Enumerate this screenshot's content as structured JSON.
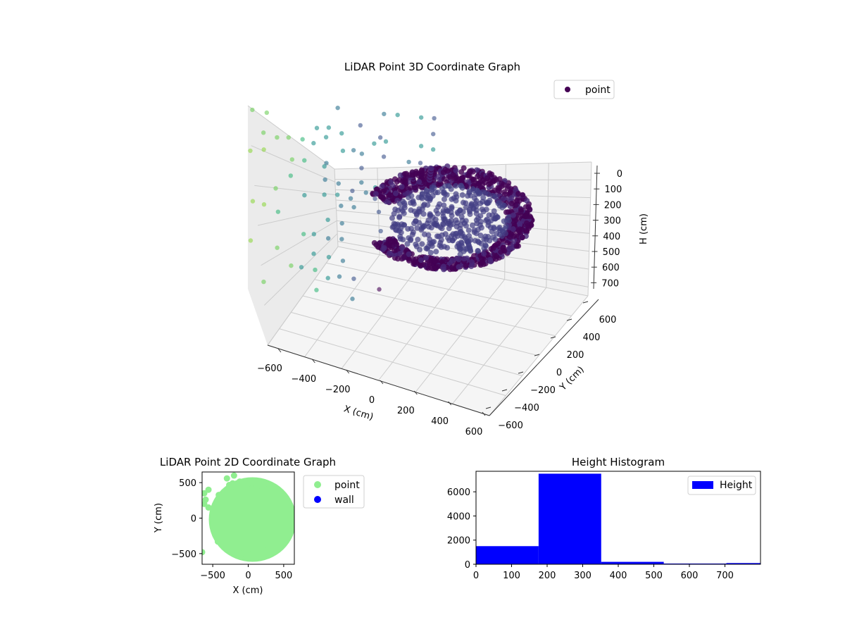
{
  "chart_data": [
    {
      "type": "scatter3d",
      "title": "LiDAR Point 3D Coordinate Graph",
      "xlabel": "X (cm)",
      "ylabel": "Y (cm)",
      "zlabel": "H (cm)",
      "x_ticks": [
        "−600",
        "−400",
        "−200",
        "0",
        "200",
        "400",
        "600"
      ],
      "y_ticks": [
        "600",
        "400",
        "200",
        "0",
        "−200",
        "−400",
        "−600"
      ],
      "z_ticks": [
        "0",
        "100",
        "200",
        "300",
        "400",
        "500",
        "600",
        "700"
      ],
      "xlim": [
        -600,
        600
      ],
      "ylim": [
        -600,
        600
      ],
      "zlim": [
        0,
        750
      ],
      "z_inverted": true,
      "legend": {
        "position": "top-right",
        "entries": [
          {
            "label": "point",
            "color": "#440154"
          }
        ]
      },
      "colormap": "viridis"
    },
    {
      "type": "scatter",
      "title": "LiDAR Point 2D Coordinate Graph",
      "xlabel": "X (cm)",
      "ylabel": "Y (cm)",
      "x_ticks": [
        "−500",
        "0",
        "500"
      ],
      "y_ticks": [
        "500",
        "0",
        "−500"
      ],
      "xlim": [
        -650,
        650
      ],
      "ylim": [
        -650,
        650
      ],
      "legend": {
        "position": "outside-right",
        "entries": [
          {
            "label": "point",
            "color": "#90ee90"
          },
          {
            "label": "wall",
            "color": "#0000ff"
          }
        ]
      }
    },
    {
      "type": "bar",
      "title": "Height Histogram",
      "x_ticks": [
        "0",
        "100",
        "200",
        "300",
        "400",
        "500",
        "600",
        "700"
      ],
      "y_ticks": [
        "0",
        "2000",
        "4000",
        "6000"
      ],
      "xlim": [
        0,
        800
      ],
      "ylim": [
        0,
        7700
      ],
      "bin_edges": [
        0,
        176,
        352,
        528,
        704,
        800
      ],
      "values": [
        1500,
        7500,
        200,
        60,
        100
      ],
      "series": [
        {
          "name": "Height",
          "color": "#0000ff"
        }
      ],
      "legend": {
        "position": "top-right",
        "entries": [
          {
            "label": "Height",
            "color": "#0000ff"
          }
        ]
      }
    }
  ]
}
